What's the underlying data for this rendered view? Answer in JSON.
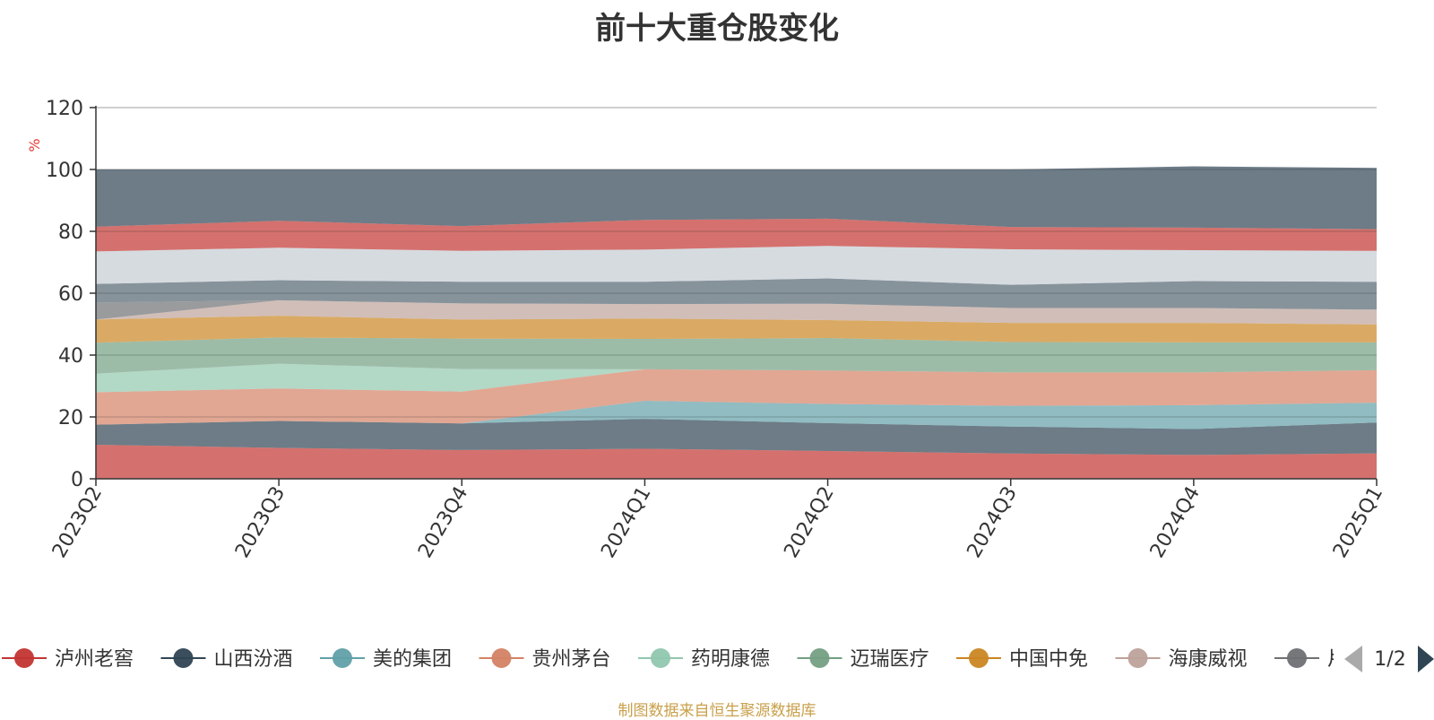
{
  "chart_data": {
    "type": "area",
    "title": "前十大重仓股变化",
    "ylabel": "%",
    "xlabel": "",
    "ylim": [
      0,
      120
    ],
    "yticks": [
      "0",
      "20",
      "40",
      "60",
      "80",
      "100",
      "120"
    ],
    "categories": [
      "2023Q2",
      "2023Q3",
      "2023Q4",
      "2024Q1",
      "2024Q2",
      "2024Q3",
      "2024Q4",
      "2025Q1"
    ],
    "grid": true,
    "stacked": true,
    "series": [
      {
        "name": "泸州老窖",
        "color": "#c23531",
        "values": [
          11,
          10,
          9.3,
          9.7,
          9,
          8.2,
          7.7,
          8.2
        ]
      },
      {
        "name": "山西汾酒",
        "color": "#2f4554",
        "values": [
          6.5,
          8.7,
          8.6,
          9.7,
          9,
          8.7,
          8.4,
          10
        ]
      },
      {
        "name": "美的集团",
        "color": "#61a0a8",
        "values": [
          0,
          0,
          0,
          5.8,
          6.2,
          6.7,
          7.7,
          6.4
        ]
      },
      {
        "name": "贵州茅台",
        "color": "#d48265",
        "values": [
          10.5,
          10.5,
          10.3,
          10.2,
          10.8,
          10.8,
          10.6,
          10.5
        ]
      },
      {
        "name": "药明康德",
        "color": "#91c7ae",
        "values": [
          6,
          8,
          7.3,
          0,
          0,
          0,
          0,
          0
        ]
      },
      {
        "name": "迈瑞医疗",
        "color": "#749f83",
        "values": [
          10,
          8.5,
          9.8,
          9.8,
          10.5,
          9.8,
          9.7,
          9
        ]
      },
      {
        "name": "中国中免",
        "color": "#ca8622",
        "values": [
          7.5,
          7,
          6.2,
          6.6,
          5.8,
          6.2,
          6.3,
          5.8
        ]
      },
      {
        "name": "海康威视",
        "color": "#bda29a",
        "values": [
          0,
          5,
          5.2,
          4.7,
          5.3,
          4.8,
          4.8,
          4.8
        ]
      },
      {
        "name": "",
        "color": "#6e7074",
        "values": [
          5.5,
          0,
          0,
          0,
          0,
          0,
          0,
          0
        ]
      },
      {
        "name": "",
        "color": "#546570",
        "values": [
          6,
          6.5,
          7,
          7.2,
          8.2,
          7.5,
          8.7,
          9
        ]
      },
      {
        "name": "",
        "color": "#c4ccd3",
        "values": [
          10.5,
          10.5,
          10,
          10.4,
          10.5,
          11.5,
          10,
          10
        ]
      },
      {
        "name": "",
        "color": "#c23531",
        "values": [
          8,
          8.7,
          8,
          9.6,
          8.8,
          7.2,
          7.3,
          7
        ]
      },
      {
        "name": "",
        "color": "#2f4554",
        "values": [
          18.5,
          16.6,
          18.3,
          16.3,
          15.9,
          18.6,
          19.8,
          19.8
        ]
      }
    ],
    "legend": {
      "position": "bottom",
      "page": "1/2"
    },
    "legend_visible": [
      {
        "name": "泸州老窖",
        "color": "#c23531"
      },
      {
        "name": "山西汾酒",
        "color": "#2f4554"
      },
      {
        "name": "美的集团",
        "color": "#61a0a8"
      },
      {
        "name": "贵州茅台",
        "color": "#d48265"
      },
      {
        "name": "药明康德",
        "color": "#91c7ae"
      },
      {
        "name": "迈瑞医疗",
        "color": "#749f83"
      },
      {
        "name": "中国中免",
        "color": "#ca8622"
      },
      {
        "name": "海康威视",
        "color": "#bda29a"
      },
      {
        "name": "片",
        "color": "#6e7074"
      }
    ],
    "source_note": "制图数据来自恒生聚源数据库"
  }
}
